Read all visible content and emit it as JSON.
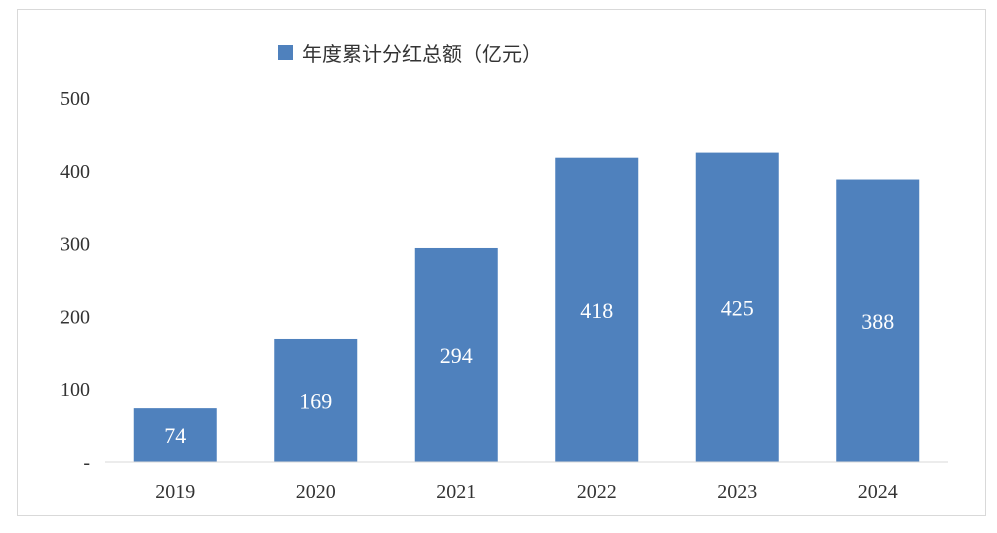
{
  "chart_data": {
    "type": "bar",
    "categories": [
      "2019",
      "2020",
      "2021",
      "2022",
      "2023",
      "2024"
    ],
    "series": [
      {
        "name": "年度累计分红总额（亿元）",
        "values": [
          74,
          169,
          294,
          418,
          425,
          388
        ],
        "color": "#4f81bd"
      }
    ],
    "ylim": [
      0,
      500
    ],
    "yticks": [
      0,
      100,
      200,
      300,
      400,
      500
    ],
    "ytick_labels": [
      "-",
      "100",
      "200",
      "300",
      "400",
      "500"
    ],
    "grid": false,
    "legend_position": "top-center",
    "axis_color": "#d9d9d9",
    "label_color": "#ffffff"
  }
}
